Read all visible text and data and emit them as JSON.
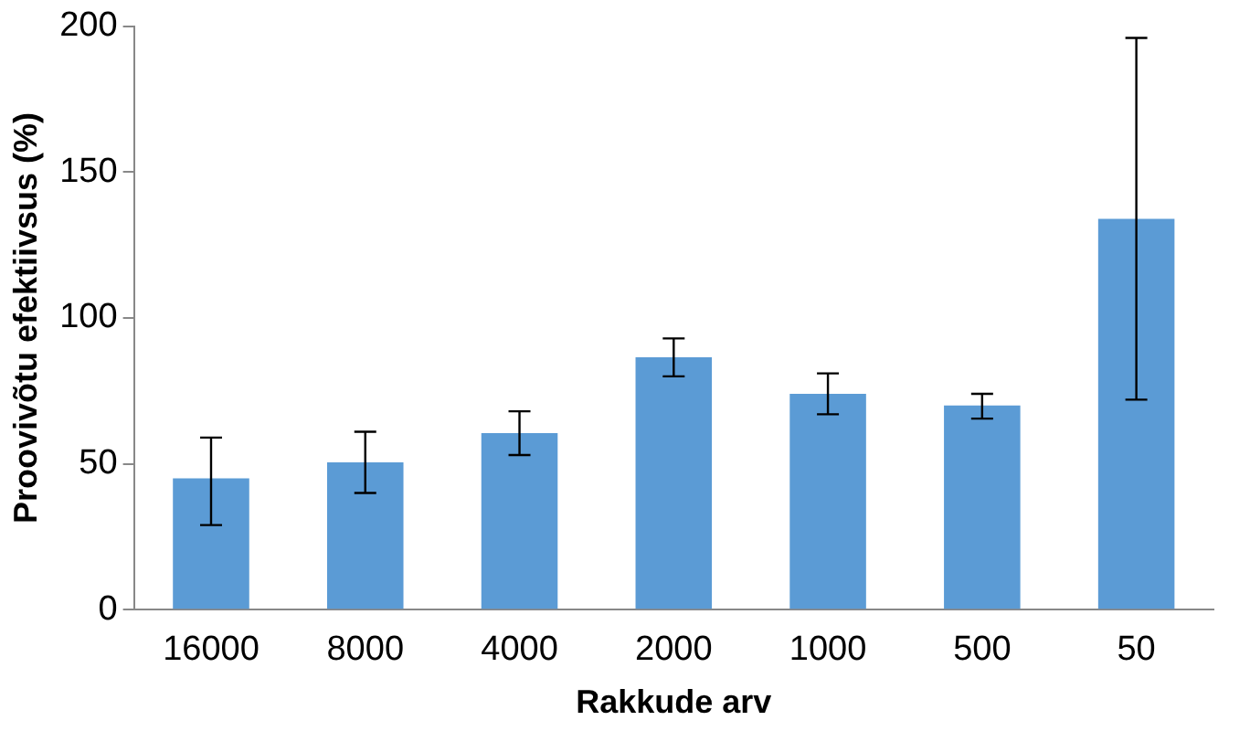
{
  "chart_data": {
    "type": "bar",
    "xlabel": "Rakkude arv",
    "ylabel": "Proovivõtu efektiivsus (%)",
    "categories": [
      "16000",
      "8000",
      "4000",
      "2000",
      "1000",
      "500",
      "50"
    ],
    "values": [
      45,
      50.5,
      60.5,
      86.5,
      74,
      70,
      134
    ],
    "errors": [
      [
        29,
        59
      ],
      [
        40,
        61
      ],
      [
        53,
        68
      ],
      [
        80,
        93
      ],
      [
        67,
        81
      ],
      [
        65.5,
        74
      ],
      [
        72,
        196
      ]
    ],
    "color": "#5b9bd5",
    "ylim": [
      0,
      200
    ],
    "yticks": [
      0,
      50,
      100,
      150,
      200
    ],
    "grid": false,
    "legend": false
  }
}
